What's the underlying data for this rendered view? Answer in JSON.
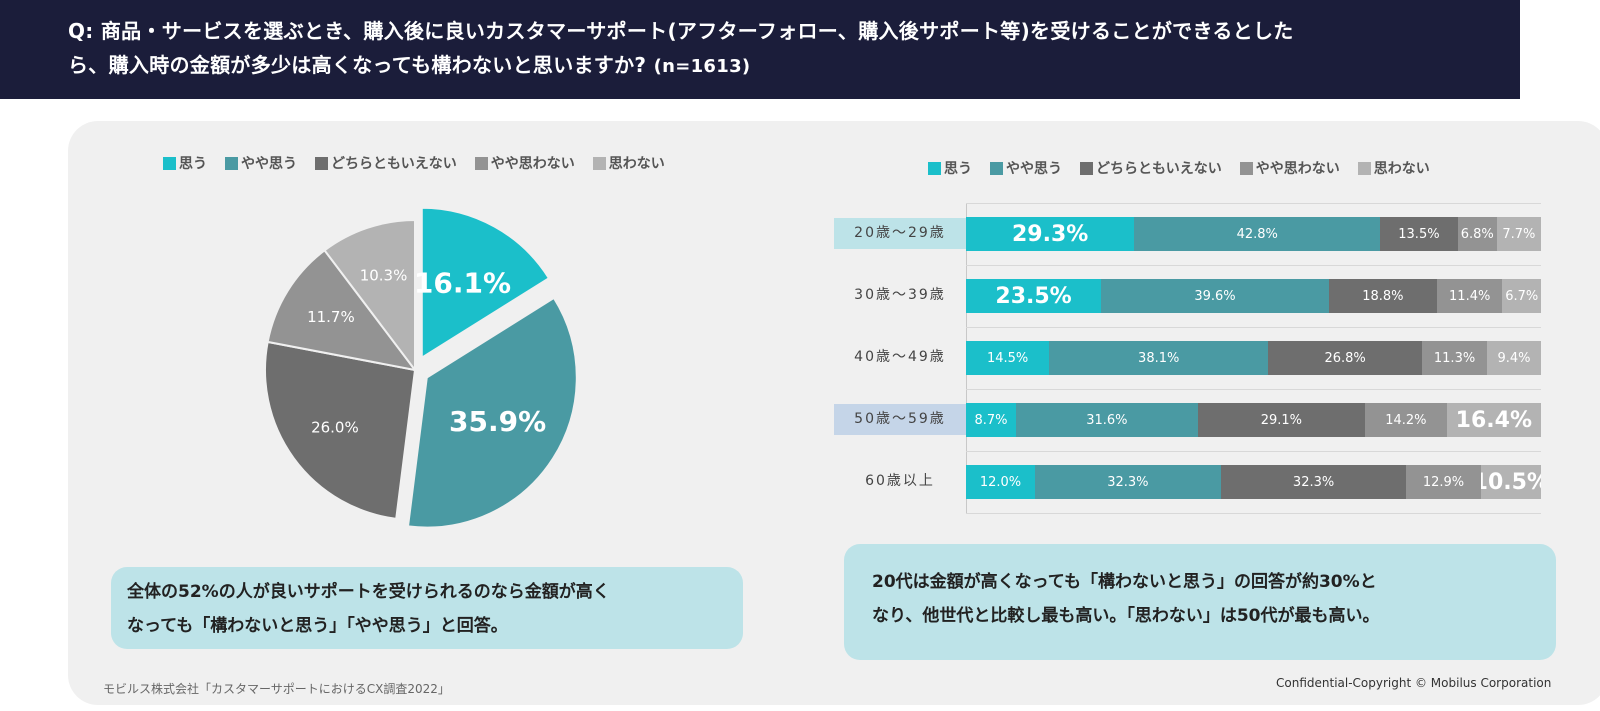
{
  "header": {
    "line1": "Q: 商品・サービスを選ぶとき、購入後に良いカスタマーサポート(アフターフォロー、購入後サポート等)を受けることができるとした",
    "line2": "ら、購入時の金額が多少は高くなっても構わないと思いますか?",
    "n": "(n=1613)"
  },
  "legend": [
    {
      "label": "思う",
      "color": "#1bbfca"
    },
    {
      "label": "やや思う",
      "color": "#4a9aa3"
    },
    {
      "label": "どちらともいえない",
      "color": "#6e6e6e"
    },
    {
      "label": "やや思わない",
      "color": "#939393"
    },
    {
      "label": "思わない",
      "color": "#b3b3b3"
    }
  ],
  "chart_data": [
    {
      "type": "pie",
      "title": "",
      "slices": [
        {
          "label": "思う",
          "value": 16.1,
          "display": "16.1%",
          "color": "#1bbfca",
          "exploded": true
        },
        {
          "label": "やや思う",
          "value": 35.9,
          "display": "35.9%",
          "color": "#4a9aa3",
          "exploded": true
        },
        {
          "label": "どちらともいえない",
          "value": 26.0,
          "display": "26.0%",
          "color": "#6e6e6e"
        },
        {
          "label": "やや思わない",
          "value": 11.7,
          "display": "11.7%",
          "color": "#939393"
        },
        {
          "label": "思わない",
          "value": 10.3,
          "display": "10.3%",
          "color": "#b3b3b3"
        }
      ]
    },
    {
      "type": "bar",
      "orientation": "horizontal",
      "stacked": true,
      "categories": [
        "20歳〜29歳",
        "30歳〜39歳",
        "40歳〜49歳",
        "50歳〜59歳",
        "60歳以上"
      ],
      "highlight_categories": [
        {
          "category": "20歳〜29歳",
          "color": "#bde3e8"
        },
        {
          "category": "50歳〜59歳",
          "color": "#c5d5e8"
        }
      ],
      "series": [
        {
          "name": "思う",
          "color": "#1bbfca",
          "values": [
            29.3,
            23.5,
            14.5,
            8.7,
            12.0
          ],
          "labels": [
            "29.3%",
            "23.5%",
            "14.5%",
            "8.7%",
            "12.0%"
          ],
          "emphasis": [
            true,
            true,
            false,
            false,
            false
          ]
        },
        {
          "name": "やや思う",
          "color": "#4a9aa3",
          "values": [
            42.8,
            39.6,
            38.1,
            31.6,
            32.3
          ],
          "labels": [
            "42.8%",
            "39.6%",
            "38.1%",
            "31.6%",
            "32.3%"
          ],
          "emphasis": [
            false,
            false,
            false,
            false,
            false
          ]
        },
        {
          "name": "どちらともいえない",
          "color": "#6e6e6e",
          "values": [
            13.5,
            18.8,
            26.8,
            29.1,
            32.3
          ],
          "labels": [
            "13.5%",
            "18.8%",
            "26.8%",
            "29.1%",
            "32.3%"
          ],
          "emphasis": [
            false,
            false,
            false,
            false,
            false
          ]
        },
        {
          "name": "やや思わない",
          "color": "#939393",
          "values": [
            6.8,
            11.4,
            11.3,
            14.2,
            12.9
          ],
          "labels": [
            "6.8%",
            "11.4%",
            "11.3%",
            "14.2%",
            "12.9%"
          ],
          "emphasis": [
            false,
            false,
            false,
            false,
            false
          ]
        },
        {
          "name": "思わない",
          "color": "#b3b3b3",
          "values": [
            7.7,
            6.7,
            9.4,
            16.4,
            10.5
          ],
          "labels": [
            "7.7%",
            "6.7%",
            "9.4%",
            "16.4%",
            "10.5%"
          ],
          "emphasis": [
            false,
            false,
            false,
            true,
            true
          ]
        }
      ],
      "xlim": [
        0,
        100
      ],
      "grid": false,
      "legend": "top"
    }
  ],
  "notes": {
    "left_line1": "全体の52%の人が良いサポートを受けられるのなら金額が高く",
    "left_line2": "なっても「構わないと思う」「やや思う」と回答。",
    "right_line1": "20代は金額が高くなっても「構わないと思う」の回答が約30%と",
    "right_line2": "なり、他世代と比較し最も高い。「思わない」は50代が最も高い。"
  },
  "footer": {
    "source": "モビルス株式会社「カスタマーサポートにおけるCX調査2022」",
    "copyright": "Confidential-Copyright © Mobilus Corporation"
  }
}
